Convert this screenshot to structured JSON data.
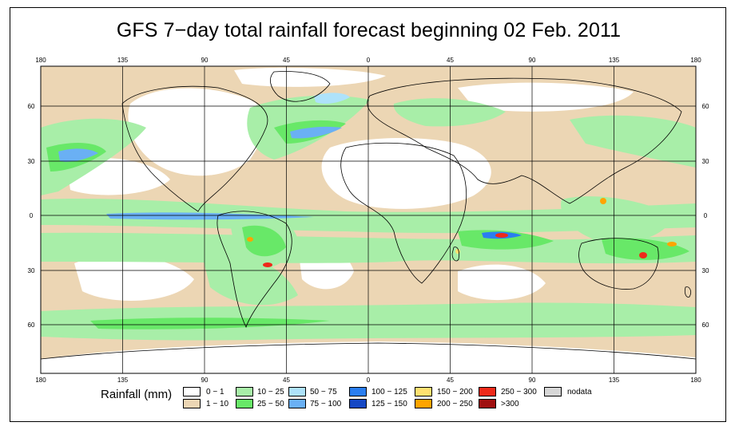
{
  "title": "GFS 7−day total rainfall forecast beginning 02 Feb. 2011",
  "top_lon_labels": [
    "180",
    "135",
    "90",
    "45",
    "0",
    "45",
    "90",
    "135",
    "180"
  ],
  "bottom_lon_labels": [
    "180",
    "135",
    "90",
    "45",
    "0",
    "45",
    "90",
    "135",
    "180"
  ],
  "left_lat_labels": [
    "60",
    "30",
    "0",
    "30",
    "60"
  ],
  "right_lat_labels": [
    "60",
    "30",
    "0",
    "30",
    "60"
  ],
  "legend": {
    "label": "Rainfall (mm)",
    "items": [
      {
        "text": "0 − 1",
        "color": "#ffffff"
      },
      {
        "text": "1 − 10",
        "color": "#ecd6b4"
      },
      {
        "text": "10 − 25",
        "color": "#a8eea8"
      },
      {
        "text": "25 − 50",
        "color": "#68e868"
      },
      {
        "text": "50 − 75",
        "color": "#aee2fa"
      },
      {
        "text": "75 − 100",
        "color": "#6ab0f4"
      },
      {
        "text": "100 − 125",
        "color": "#2a7ef0"
      },
      {
        "text": "125 − 150",
        "color": "#1648c4"
      },
      {
        "text": "150 − 200",
        "color": "#ffe070"
      },
      {
        "text": "200 − 250",
        "color": "#ffa400"
      },
      {
        "text": "250 − 300",
        "color": "#ee2a1a"
      },
      {
        "text": ">300",
        "color": "#a01010"
      },
      {
        "text": "nodata",
        "color": "#d6d6d6"
      }
    ]
  }
}
